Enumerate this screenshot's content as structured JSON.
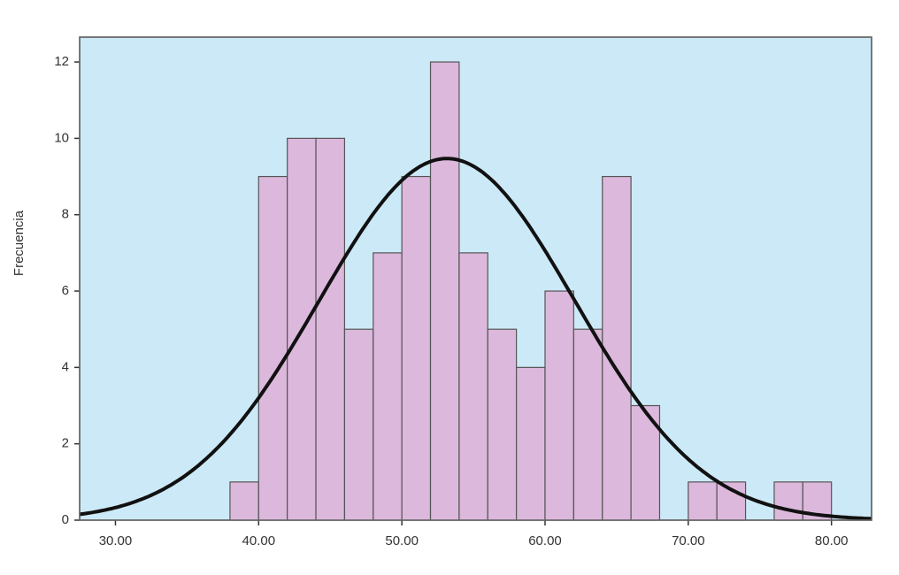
{
  "chart_data": {
    "type": "histogram",
    "y_label": "Frecuencia",
    "bins": [
      38,
      40,
      42,
      44,
      46,
      48,
      50,
      52,
      54,
      56,
      58,
      60,
      62,
      64,
      66,
      68,
      70,
      72,
      74,
      76,
      78,
      80
    ],
    "values": [
      1,
      9,
      10,
      10,
      5,
      7,
      9,
      12,
      7,
      5,
      4,
      6,
      5,
      9,
      3,
      0,
      1,
      1,
      0,
      1,
      1
    ],
    "color": "#dcb8dc",
    "background": "#cce9f7",
    "curve_color": "#111111",
    "xlim": [
      27.5,
      82.8
    ],
    "ylim": [
      0,
      12.65
    ],
    "xticks": [
      {
        "value": 30,
        "label": "30.00"
      },
      {
        "value": 40,
        "label": "40.00"
      },
      {
        "value": 50,
        "label": "50.00"
      },
      {
        "value": 60,
        "label": "60.00"
      },
      {
        "value": 70,
        "label": "70.00"
      },
      {
        "value": 80,
        "label": "80.00"
      }
    ],
    "yticks": [
      0,
      2,
      4,
      6,
      8,
      10,
      12
    ]
  }
}
